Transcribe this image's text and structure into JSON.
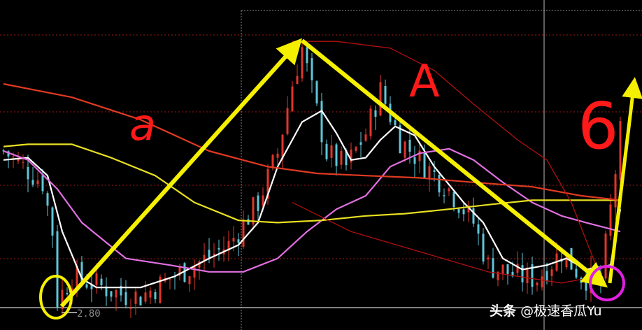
{
  "chart_data": {
    "type": "candlestick",
    "title": "",
    "xlabel": "",
    "ylabel": "",
    "low_marker_label": "2.80",
    "colors": {
      "up": "#e0362a",
      "down": "#5fc6d8",
      "background": "#000000"
    },
    "price_path": [
      {
        "i": 0,
        "p": 3.5
      },
      {
        "i": 8,
        "p": 3.36
      },
      {
        "i": 10,
        "p": 3.14
      },
      {
        "i": 11,
        "p": 2.83
      },
      {
        "i": 14,
        "p": 2.94
      },
      {
        "i": 18,
        "p": 2.91
      },
      {
        "i": 24,
        "p": 2.86
      },
      {
        "i": 28,
        "p": 2.85
      },
      {
        "i": 34,
        "p": 2.93
      },
      {
        "i": 39,
        "p": 2.99
      },
      {
        "i": 46,
        "p": 3.08
      },
      {
        "i": 52,
        "p": 3.27
      },
      {
        "i": 56,
        "p": 3.49
      },
      {
        "i": 59,
        "p": 3.8
      },
      {
        "i": 61,
        "p": 3.96
      },
      {
        "i": 63,
        "p": 3.77
      },
      {
        "i": 66,
        "p": 3.49
      },
      {
        "i": 70,
        "p": 3.43
      },
      {
        "i": 74,
        "p": 3.58
      },
      {
        "i": 77,
        "p": 3.77
      },
      {
        "i": 81,
        "p": 3.55
      },
      {
        "i": 85,
        "p": 3.46
      },
      {
        "i": 91,
        "p": 3.33
      },
      {
        "i": 96,
        "p": 3.18
      },
      {
        "i": 99,
        "p": 2.99
      },
      {
        "i": 105,
        "p": 2.94
      },
      {
        "i": 109,
        "p": 2.93
      },
      {
        "i": 114,
        "p": 3.05
      },
      {
        "i": 118,
        "p": 2.94
      },
      {
        "i": 122,
        "p": 2.91
      },
      {
        "i": 124,
        "p": 3.24
      },
      {
        "i": 126,
        "p": 3.58
      }
    ],
    "series": [
      {
        "color": "#ffffff",
        "points": [
          [
            0,
            3.46
          ],
          [
            5,
            3.47
          ],
          [
            9,
            3.39
          ],
          [
            12,
            3.14
          ],
          [
            16,
            2.93
          ],
          [
            19,
            2.89
          ],
          [
            28,
            2.89
          ],
          [
            35,
            2.94
          ],
          [
            42,
            3.02
          ],
          [
            48,
            3.08
          ],
          [
            52,
            3.18
          ],
          [
            56,
            3.43
          ],
          [
            61,
            3.63
          ],
          [
            65,
            3.68
          ],
          [
            68,
            3.58
          ],
          [
            71,
            3.46
          ],
          [
            74,
            3.47
          ],
          [
            77,
            3.55
          ],
          [
            80,
            3.61
          ],
          [
            84,
            3.57
          ],
          [
            88,
            3.43
          ],
          [
            94,
            3.27
          ],
          [
            98,
            3.18
          ],
          [
            102,
            3.02
          ],
          [
            106,
            2.97
          ],
          [
            111,
            2.99
          ],
          [
            115,
            3.02
          ],
          [
            119,
            2.97
          ],
          [
            124,
            2.99
          ],
          [
            126,
            3.24
          ]
        ]
      },
      {
        "color": "#e070e0",
        "points": [
          [
            0,
            3.5
          ],
          [
            5,
            3.46
          ],
          [
            11,
            3.33
          ],
          [
            16,
            3.18
          ],
          [
            25,
            3.02
          ],
          [
            34,
            2.99
          ],
          [
            42,
            2.96
          ],
          [
            49,
            2.96
          ],
          [
            56,
            3.02
          ],
          [
            62,
            3.14
          ],
          [
            68,
            3.24
          ],
          [
            74,
            3.3
          ],
          [
            79,
            3.43
          ],
          [
            85,
            3.49
          ],
          [
            91,
            3.51
          ],
          [
            96,
            3.46
          ],
          [
            102,
            3.36
          ],
          [
            108,
            3.27
          ],
          [
            114,
            3.21
          ],
          [
            119,
            3.18
          ],
          [
            126,
            3.14
          ]
        ]
      },
      {
        "color": "#e8e020",
        "points": [
          [
            0,
            3.52
          ],
          [
            5,
            3.53
          ],
          [
            14,
            3.53
          ],
          [
            22,
            3.47
          ],
          [
            31,
            3.39
          ],
          [
            39,
            3.27
          ],
          [
            48,
            3.19
          ],
          [
            56,
            3.18
          ],
          [
            65,
            3.19
          ],
          [
            74,
            3.21
          ],
          [
            82,
            3.22
          ],
          [
            91,
            3.24
          ],
          [
            99,
            3.26
          ],
          [
            108,
            3.28
          ],
          [
            116,
            3.28
          ],
          [
            126,
            3.28
          ]
        ]
      },
      {
        "color": "#e03a22",
        "points": [
          [
            0,
            3.8
          ],
          [
            14,
            3.74
          ],
          [
            28,
            3.64
          ],
          [
            42,
            3.5
          ],
          [
            54,
            3.43
          ],
          [
            64,
            3.4
          ],
          [
            74,
            3.39
          ],
          [
            85,
            3.38
          ],
          [
            96,
            3.36
          ],
          [
            108,
            3.34
          ],
          [
            118,
            3.3
          ],
          [
            126,
            3.28
          ]
        ]
      },
      {
        "color": "#b01010",
        "points": [
          [
            59,
            3.99
          ],
          [
            68,
            3.99
          ],
          [
            79,
            3.96
          ],
          [
            88,
            3.86
          ],
          [
            96,
            3.71
          ],
          [
            105,
            3.55
          ],
          [
            111,
            3.46
          ],
          [
            116,
            3.27
          ],
          [
            121,
            2.99
          ]
        ]
      },
      {
        "color": "#b01010",
        "points": [
          [
            59,
            3.27
          ],
          [
            71,
            3.14
          ],
          [
            85,
            3.05
          ],
          [
            99,
            2.96
          ],
          [
            114,
            2.91
          ],
          [
            119,
            2.93
          ]
        ]
      }
    ],
    "annotations": {
      "wave_a": "a",
      "wave_A": "A",
      "wave_b": "6"
    }
  },
  "watermark": {
    "brand": "头条",
    "handle": "@极速香瓜Yu"
  }
}
